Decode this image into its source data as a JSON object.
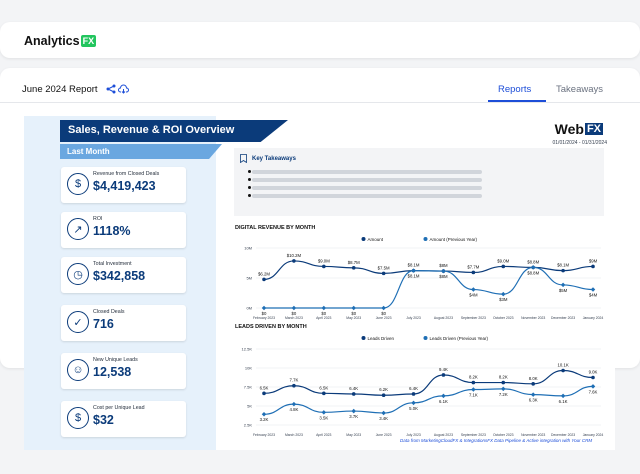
{
  "app": {
    "brand_name": "Analytics",
    "brand_suffix": "FX"
  },
  "report": {
    "title": "June 2024 Report"
  },
  "tabs": [
    {
      "label": "Reports",
      "active": true
    },
    {
      "label": "Takeaways",
      "active": false
    }
  ],
  "dashboard": {
    "title": "Sales, Revenue & ROI Overview",
    "period_label": "Last Month",
    "logo_text": "Web",
    "logo_suffix": "FX",
    "date_range": "01/01/2024 - 01/31/2024",
    "kpis": [
      {
        "label": "Revenue from Closed Deals",
        "value": "$4,419,423",
        "icon": "money-icon"
      },
      {
        "label": "ROI",
        "value": "1118%",
        "icon": "chart-icon"
      },
      {
        "label": "Total Investment",
        "value": "$342,858",
        "icon": "investment-icon"
      },
      {
        "label": "Closed Deals",
        "value": "716",
        "icon": "deals-icon"
      },
      {
        "label": "New Unique Leads",
        "value": "12,538",
        "icon": "users-icon"
      },
      {
        "label": "Cost per Unique Lead",
        "value": "$32",
        "icon": "dollar-icon"
      }
    ],
    "key_takeaways_title": "Key Takeaways",
    "footer_text": "Data from MarketingCloudFX & IntegrationsFX Data Pipeline & Active integration with Your CRM"
  },
  "chart_data": [
    {
      "type": "line",
      "title": "DIGITAL REVENUE BY MONTH",
      "categories": [
        "February 2023",
        "March 2023",
        "April 2023",
        "May 2023",
        "June 2023",
        "July 2023",
        "August 2023",
        "September 2023",
        "October 2023",
        "November 2023",
        "December 2023",
        "January 2024"
      ],
      "series": [
        {
          "name": "Amount",
          "values": [
            6.2,
            10.2,
            9.0,
            8.7,
            7.5,
            8.1,
            8.0,
            7.7,
            9.0,
            8.8,
            8.1,
            9.0
          ],
          "labels": [
            "$6.2M",
            "$10.2M",
            "$9.0M",
            "$8.7M",
            "$7.5M",
            "$8.1M",
            "$8M",
            "$7.7M",
            "$9.0M",
            "$8.8M",
            "$8.1M",
            "$9M"
          ],
          "color": "#0b3b7a"
        },
        {
          "name": "Amount (Previous Year)",
          "values": [
            0,
            0,
            0,
            0,
            0,
            8.1,
            8.0,
            4.0,
            3.0,
            8.8,
            5.0,
            4.0
          ],
          "labels": [
            "$0",
            "$0",
            "$0",
            "$0",
            "$0",
            "$8.1M",
            "$8M",
            "$4M",
            "$3M",
            "$8.8M",
            "$5M",
            "$4M"
          ],
          "color": "#1f6fb5"
        }
      ],
      "yticks": [
        "10M",
        "5M",
        "0M"
      ],
      "ylim": [
        0,
        13
      ],
      "legend": "top-center"
    },
    {
      "type": "line",
      "title": "LEADS DRIVEN BY MONTH",
      "categories": [
        "February 2023",
        "March 2023",
        "April 2023",
        "May 2023",
        "June 2023",
        "July 2023",
        "August 2023",
        "September 2023",
        "October 2023",
        "November 2023",
        "December 2023",
        "January 2024"
      ],
      "series": [
        {
          "name": "Leads Driven",
          "values": [
            6.5,
            7.7,
            6.5,
            6.4,
            6.2,
            6.4,
            9.4,
            8.2,
            8.2,
            8.0,
            10.1,
            9.0
          ],
          "labels": [
            "6.5K",
            "7.7K",
            "6.5K",
            "6.4K",
            "6.2K",
            "6.4K",
            "9.4K",
            "8.2K",
            "8.2K",
            "8.0K",
            "10.1K",
            "9.0K"
          ],
          "color": "#0b3b7a"
        },
        {
          "name": "Leads Driven (Previous Year)",
          "values": [
            3.2,
            4.8,
            3.5,
            3.7,
            3.4,
            5.0,
            6.1,
            7.1,
            7.2,
            6.3,
            6.1,
            7.6
          ],
          "labels": [
            "3.2K",
            "4.8K",
            "3.5K",
            "3.7K",
            "3.4K",
            "5.0K",
            "6.1K",
            "7.1K",
            "7.2K",
            "6.3K",
            "6.1K",
            "7.6K"
          ],
          "color": "#1f6fb5"
        }
      ],
      "yticks": [
        "12.5K",
        "10K",
        "7.5K",
        "5K",
        "2.5K"
      ],
      "ylim": [
        1.5,
        13.5
      ],
      "legend": "top-center"
    }
  ]
}
